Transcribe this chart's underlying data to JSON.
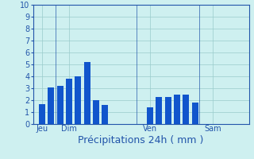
{
  "title": "Précipitations 24h ( mm )",
  "background_color": "#cef0f0",
  "bar_color": "#1155cc",
  "ylim": [
    0,
    10
  ],
  "yticks": [
    0,
    1,
    2,
    3,
    4,
    5,
    6,
    7,
    8,
    9,
    10
  ],
  "day_labels": [
    "Jeu",
    "Dim",
    "Ven",
    "Sam"
  ],
  "day_positions": [
    1,
    4,
    13,
    20
  ],
  "bar_x": [
    1,
    2,
    3,
    4,
    5,
    6,
    7,
    8,
    13,
    14,
    15,
    16,
    17,
    18,
    19,
    20,
    21,
    22
  ],
  "bar_heights": [
    1.7,
    3.1,
    3.2,
    3.8,
    4.0,
    5.2,
    2.0,
    1.6,
    1.4,
    2.3,
    2.3,
    2.5,
    2.5,
    1.8,
    0,
    0,
    0,
    0
  ],
  "vline_positions": [
    2.5,
    11.5,
    18.5
  ],
  "tick_fontsize": 7,
  "label_fontsize": 9,
  "grid_color": "#99cccc",
  "axis_color": "#2255aa",
  "xlim": [
    0,
    24
  ]
}
